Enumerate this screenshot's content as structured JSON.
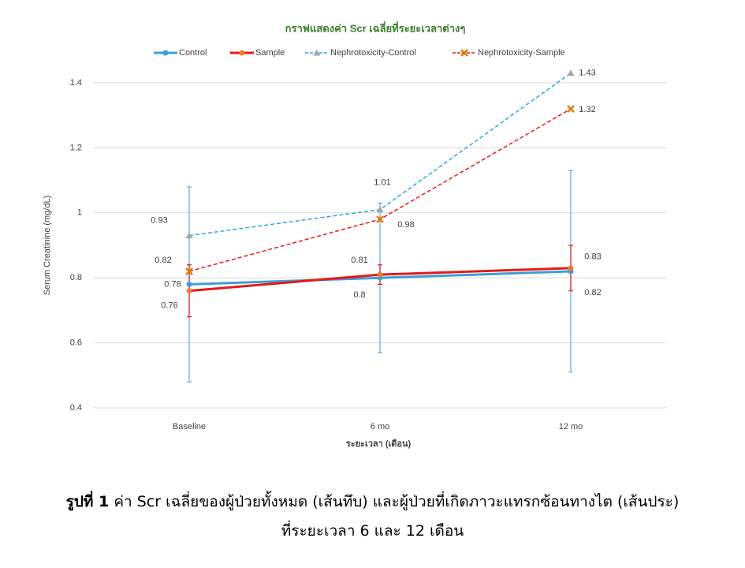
{
  "chart_data": {
    "type": "line",
    "title": "กราฟแสดงค่า Scr เฉลี่ยที่ระยะเวลาต่างๆ",
    "x_label": "ระยะเวลา (เดือน)",
    "y_label": "Serum Creatinine (mg/dL)",
    "categories": [
      "Baseline",
      "6 mo",
      "12 mo"
    ],
    "ylim": [
      0.4,
      1.4
    ],
    "yticks": [
      0.4,
      0.6,
      0.8,
      1,
      1.2,
      1.4
    ],
    "grid": true,
    "legend": "top",
    "series": [
      {
        "name": "Control",
        "color": "#3d9fd9",
        "marker": "circle",
        "marker_color": "#3d9fd9",
        "dashed": false,
        "values": [
          0.78,
          0.8,
          0.82
        ],
        "errors": [
          0.3,
          0.23,
          0.31
        ],
        "error_color": "#5bb0e0"
      },
      {
        "name": "Sample",
        "color": "#e41b17",
        "marker": "circle",
        "marker_color": "#ed7d31",
        "dashed": false,
        "values": [
          0.76,
          0.81,
          0.83
        ],
        "errors": [
          0.08,
          0.03,
          0.07
        ],
        "error_color": "#e41b17"
      },
      {
        "name": "Nephrotoxicity-Control",
        "color": "#2aa7e0",
        "marker": "triangle",
        "marker_color": "#a5a5a5",
        "dashed": true,
        "values": [
          0.93,
          1.01,
          1.43
        ]
      },
      {
        "name": "Nephrotoxicity-Sample",
        "color": "#e41b17",
        "marker": "x",
        "marker_color": "#f0b400",
        "dashed": true,
        "values": [
          0.82,
          0.98,
          1.32
        ]
      }
    ]
  },
  "caption": {
    "label": "รูปที่ 1",
    "line1": "ค่า Scr เฉลี่ยของผู้ป่วยทั้งหมด (เส้นทึบ) และผู้ป่วยที่เกิดภาวะแทรกซ้อนทางไต (เส้นประ)",
    "line2": "ที่ระยะเวลา 6 และ 12 เดือน"
  }
}
